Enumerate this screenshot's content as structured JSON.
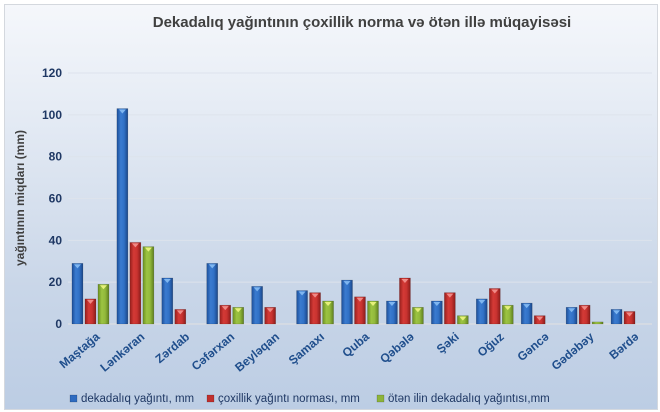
{
  "chart_data": {
    "type": "bar",
    "title": "Dekadalıq yağıntının çoxillik norma  və ötən illə müqayisəsi",
    "xlabel": "",
    "ylabel": "yağıntının miqdarı (mm)",
    "ylim": [
      0,
      120
    ],
    "yticks": [
      0,
      20,
      40,
      60,
      80,
      100,
      120
    ],
    "grid": true,
    "legend_position": "bottom",
    "categories": [
      "Maştağa",
      "Lənkəran",
      "Zərdab",
      "Cəfərxan",
      "Beyləqan",
      "Şamaxı",
      "Quba",
      "Qəbələ",
      "Şəki",
      "Oğuz",
      "Gəncə",
      "Gədəbəy",
      "Bərdə"
    ],
    "series": [
      {
        "name": "dekadalıq yağıntı, mm",
        "color": "#2e6bc0",
        "values": [
          29,
          103,
          22,
          29,
          18,
          16,
          21,
          11,
          11,
          12,
          10,
          8,
          7
        ]
      },
      {
        "name": "çoxillik yağıntı norması, mm",
        "color": "#c0302e",
        "values": [
          12,
          39,
          7,
          9,
          8,
          15,
          13,
          22,
          15,
          17,
          4,
          9,
          6
        ]
      },
      {
        "name": "ötən ilin dekadalıq yağıntısı,mm",
        "color": "#8db43a",
        "values": [
          19,
          37,
          null,
          8,
          null,
          11,
          11,
          8,
          4,
          9,
          null,
          1,
          null
        ]
      }
    ]
  }
}
